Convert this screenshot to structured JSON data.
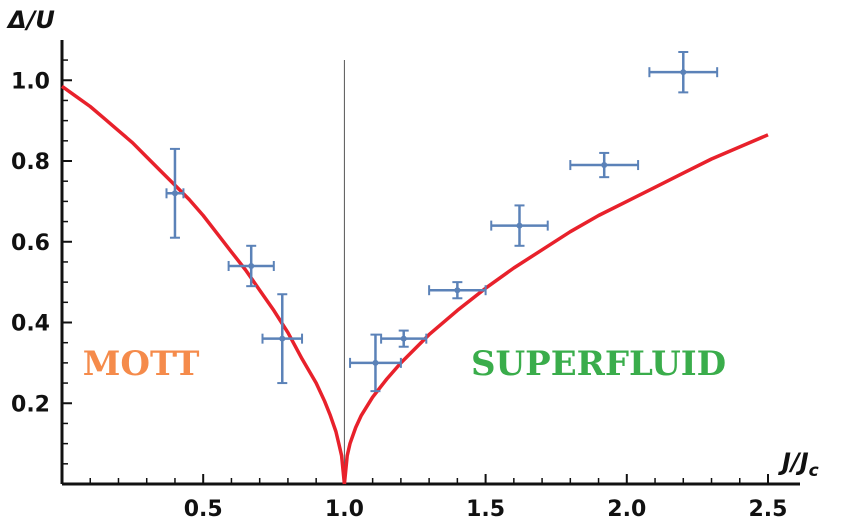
{
  "chart_data": {
    "type": "scatter",
    "xlabel": "J/J",
    "xlabel_sub": "c",
    "ylabel": "Δ/U",
    "xlim": [
      0,
      2.5
    ],
    "ylim": [
      0,
      1.07
    ],
    "x_ticks": [
      {
        "value": 0.5,
        "label": "0.5"
      },
      {
        "value": 1.0,
        "label": "1.0"
      },
      {
        "value": 1.5,
        "label": "1.5"
      },
      {
        "value": 2.0,
        "label": "2.0"
      },
      {
        "value": 2.5,
        "label": "2.5"
      }
    ],
    "y_ticks": [
      {
        "value": 0.2,
        "label": "0.2"
      },
      {
        "value": 0.4,
        "label": "0.4"
      },
      {
        "value": 0.6,
        "label": "0.6"
      },
      {
        "value": 0.8,
        "label": "0.8"
      },
      {
        "value": 1.0,
        "label": "1.0"
      }
    ],
    "x_minor_step": 0.1,
    "y_minor_step": 0.05,
    "critical_line_x": 1.0,
    "regions": [
      {
        "label": "MOTT",
        "color": "#f58b4b",
        "x": 0.28,
        "y": 0.3
      },
      {
        "label": "SUPERFLUID",
        "color": "#3aad4b",
        "x": 1.9,
        "y": 0.3
      }
    ],
    "series": [
      {
        "kind": "points",
        "color": "#5b82b8",
        "points": [
          {
            "x": 0.4,
            "y": 0.72,
            "xerr": 0.03,
            "yerr": 0.11
          },
          {
            "x": 0.67,
            "y": 0.54,
            "xerr": 0.08,
            "yerr": 0.05
          },
          {
            "x": 0.78,
            "y": 0.36,
            "xerr": 0.07,
            "yerr": 0.11
          },
          {
            "x": 1.11,
            "y": 0.3,
            "xerr": 0.09,
            "yerr": 0.07
          },
          {
            "x": 1.21,
            "y": 0.36,
            "xerr": 0.08,
            "yerr": 0.02
          },
          {
            "x": 1.4,
            "y": 0.48,
            "xerr": 0.1,
            "yerr": 0.02
          },
          {
            "x": 1.62,
            "y": 0.64,
            "xerr": 0.1,
            "yerr": 0.05
          },
          {
            "x": 1.92,
            "y": 0.79,
            "xerr": 0.12,
            "yerr": 0.03
          },
          {
            "x": 2.2,
            "y": 1.02,
            "xerr": 0.12,
            "yerr": 0.05
          }
        ]
      },
      {
        "kind": "curve",
        "color": "#e8212b",
        "x": [
          0.0,
          0.05,
          0.1,
          0.15,
          0.2,
          0.25,
          0.3,
          0.35,
          0.4,
          0.45,
          0.5,
          0.55,
          0.6,
          0.65,
          0.7,
          0.75,
          0.8,
          0.85,
          0.9,
          0.93,
          0.95,
          0.97,
          0.98,
          0.99,
          1.0
        ],
        "y": [
          0.985,
          0.96,
          0.935,
          0.905,
          0.875,
          0.845,
          0.81,
          0.775,
          0.74,
          0.705,
          0.665,
          0.62,
          0.575,
          0.53,
          0.48,
          0.43,
          0.375,
          0.31,
          0.25,
          0.205,
          0.17,
          0.13,
          0.1,
          0.07,
          0.0
        ]
      },
      {
        "kind": "curve",
        "color": "#e8212b",
        "x": [
          1.0,
          1.01,
          1.02,
          1.04,
          1.06,
          1.1,
          1.15,
          1.2,
          1.3,
          1.4,
          1.5,
          1.6,
          1.7,
          1.8,
          1.9,
          2.0,
          2.1,
          2.2,
          2.3,
          2.4,
          2.5
        ],
        "y": [
          0.0,
          0.07,
          0.1,
          0.14,
          0.17,
          0.215,
          0.26,
          0.3,
          0.37,
          0.43,
          0.485,
          0.535,
          0.58,
          0.625,
          0.665,
          0.7,
          0.735,
          0.77,
          0.805,
          0.835,
          0.865
        ]
      }
    ]
  }
}
